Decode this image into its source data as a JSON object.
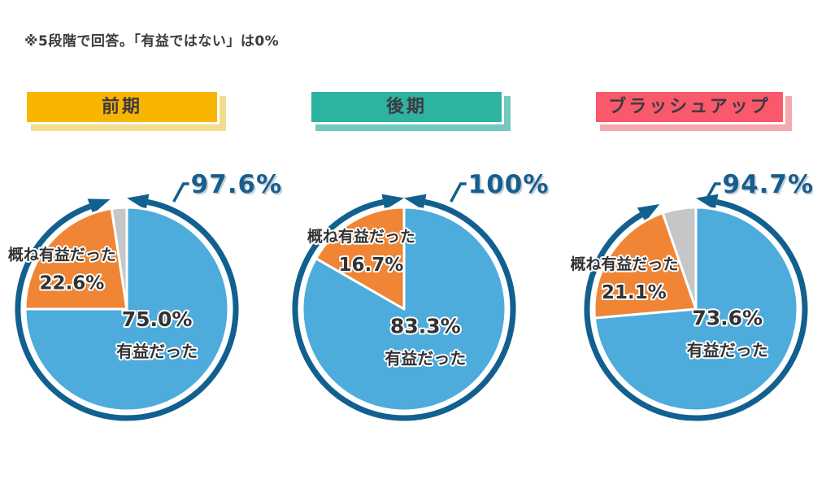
{
  "note": "※5段階で回答。「有益ではない」は0%",
  "colors": {
    "slice_useful": "#4DACDC",
    "slice_mostly_useful": "#EF8535",
    "slice_other": "#C5C6C8",
    "ring": "#11608F",
    "annotation_text": "#175E8E",
    "slice_label_text": "#333333",
    "note_text": "#3A3A3A",
    "header_text": "#3E3942"
  },
  "chart_data": [
    {
      "type": "pie",
      "title": "前期",
      "title_color": "#F8B500",
      "title_shadow_color": "#F4DC8F",
      "total_annotation": "97.6%",
      "segments": [
        {
          "label": "有益だった",
          "value": 75.0,
          "display": "75.0%"
        },
        {
          "label": "概ね有益だった",
          "value": 22.6,
          "display": "22.6%"
        },
        {
          "label": "",
          "value": 2.4,
          "display": ""
        }
      ]
    },
    {
      "type": "pie",
      "title": "後期",
      "title_color": "#2DB3A0",
      "title_shadow_color": "#72C9BD",
      "total_annotation": "100%",
      "segments": [
        {
          "label": "有益だった",
          "value": 83.3,
          "display": "83.3%"
        },
        {
          "label": "概ね有益だった",
          "value": 16.7,
          "display": "16.7%"
        }
      ]
    },
    {
      "type": "pie",
      "title": "ブラッシュアップ",
      "title_color": "#F9596A",
      "title_shadow_color": "#F4A9AE",
      "total_annotation": "94.7%",
      "segments": [
        {
          "label": "有益だった",
          "value": 73.6,
          "display": "73.6%"
        },
        {
          "label": "概ね有益だった",
          "value": 21.1,
          "display": "21.1%"
        },
        {
          "label": "",
          "value": 5.3,
          "display": ""
        }
      ]
    }
  ]
}
